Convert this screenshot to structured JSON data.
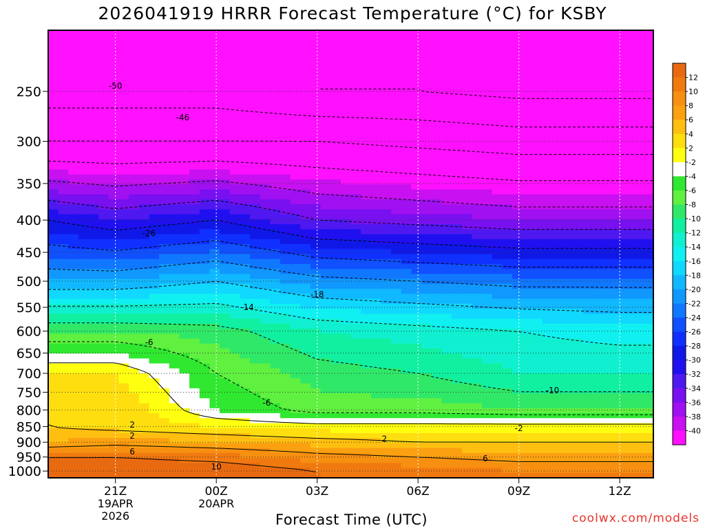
{
  "title": "2026041919 HRRR Forecast Temperature (°C) for KSBY",
  "xlabel": "Forecast Time (UTC)",
  "credit": "coolwx.com/models",
  "chart_data": {
    "type": "heatmap",
    "title": "2026041919 HRRR Forecast Temperature (°C) for KSBY",
    "xlabel": "Forecast Time (UTC)",
    "ylabel": "",
    "y_scale": "log-pressure (hPa, inverted)",
    "ylim": [
      1025,
      200
    ],
    "xlim": [
      "2026-04-19T19:00Z",
      "2026-04-20T13:00Z"
    ],
    "x_ticks": [
      {
        "label": "21Z",
        "sub": [
          "19APR",
          "2026"
        ],
        "time": "2026-04-19T21:00Z"
      },
      {
        "label": "00Z",
        "sub": [
          "20APR"
        ],
        "time": "2026-04-20T00:00Z"
      },
      {
        "label": "03Z",
        "sub": [],
        "time": "2026-04-20T03:00Z"
      },
      {
        "label": "06Z",
        "sub": [],
        "time": "2026-04-20T06:00Z"
      },
      {
        "label": "09Z",
        "sub": [],
        "time": "2026-04-20T09:00Z"
      },
      {
        "label": "12Z",
        "sub": [],
        "time": "2026-04-20T12:00Z"
      }
    ],
    "y_ticks": [
      250,
      300,
      350,
      400,
      450,
      500,
      550,
      600,
      650,
      700,
      750,
      800,
      850,
      900,
      950,
      1000
    ],
    "grid": true,
    "colorbar": {
      "position": "right",
      "labels": [
        "12",
        "10",
        "8",
        "6",
        "4",
        "2",
        "-2",
        "-4",
        "-6",
        "-8",
        "-10",
        "-12",
        "-14",
        "-16",
        "-18",
        "-20",
        "-22",
        "-24",
        "-26",
        "-28",
        "-30",
        "-32",
        "-34",
        "-36",
        "-38",
        "-40"
      ],
      "colors": [
        "#e86a10",
        "#f07a10",
        "#f78f10",
        "#fba010",
        "#ffbf10",
        "#ffde10",
        "#ffff10",
        "#ffffff",
        "#30e830",
        "#60f040",
        "#30e868",
        "#10f0a0",
        "#10f0d0",
        "#10f0f0",
        "#10d8ff",
        "#10b8ff",
        "#1098ff",
        "#1078ff",
        "#1050ff",
        "#1030ff",
        "#1018e8",
        "#2010f0",
        "#5018f0",
        "#7810f0",
        "#a010f0",
        "#c810f0",
        "#ff10ff"
      ]
    },
    "profiles": [
      {
        "time": "2026-04-19T19:00Z",
        "pressure": [
          1000,
          950,
          900,
          850,
          800,
          700,
          600,
          500,
          400,
          300,
          250
        ],
        "temp": [
          14,
          12,
          6,
          4,
          4,
          2,
          -6,
          -18,
          -28,
          -44,
          -50
        ]
      },
      {
        "time": "2026-04-19T21:00Z",
        "pressure": [
          1000,
          950,
          900,
          850,
          800,
          700,
          600,
          500,
          400,
          300,
          250
        ],
        "temp": [
          14,
          12,
          7,
          3,
          4,
          2,
          -6,
          -18,
          -30,
          -44,
          -50
        ]
      },
      {
        "time": "2026-04-20T00:00Z",
        "pressure": [
          1000,
          950,
          900,
          850,
          800,
          700,
          600,
          500,
          400,
          300,
          250
        ],
        "temp": [
          14,
          11,
          6,
          2,
          -2,
          -4,
          -7,
          -16,
          -28,
          -44,
          -50
        ]
      },
      {
        "time": "2026-04-20T03:00Z",
        "pressure": [
          1000,
          950,
          900,
          850,
          800,
          700,
          600,
          500,
          400,
          300,
          250
        ],
        "temp": [
          12,
          9,
          5,
          1,
          -5,
          -7,
          -10,
          -19,
          -32,
          -44,
          -52
        ]
      },
      {
        "time": "2026-04-20T06:00Z",
        "pressure": [
          1000,
          950,
          900,
          850,
          800,
          700,
          600,
          500,
          400,
          300,
          250
        ],
        "temp": [
          11,
          8,
          4,
          1,
          -5,
          -8,
          -11,
          -20,
          -33,
          -45,
          -52
        ]
      },
      {
        "time": "2026-04-20T09:00Z",
        "pressure": [
          1000,
          950,
          900,
          850,
          800,
          700,
          600,
          500,
          400,
          300,
          250
        ],
        "temp": [
          10,
          7,
          4,
          1,
          -6,
          -10,
          -12,
          -21,
          -34,
          -46,
          -53
        ]
      },
      {
        "time": "2026-04-20T12:00Z",
        "pressure": [
          1000,
          950,
          900,
          850,
          800,
          700,
          600,
          500,
          400,
          300,
          250
        ],
        "temp": [
          10,
          7,
          4,
          1,
          -6,
          -10,
          -13,
          -21,
          -34,
          -46,
          -53
        ]
      }
    ],
    "contour_labels": [
      {
        "text": "-50",
        "time": "2026-04-19T21:00Z",
        "pressure": 245
      },
      {
        "text": "-46",
        "time": "2026-04-19T23:00Z",
        "pressure": 275
      },
      {
        "text": "-26",
        "time": "2026-04-19T22:00Z",
        "pressure": 420
      },
      {
        "text": "-18",
        "time": "2026-04-20T03:00Z",
        "pressure": 525
      },
      {
        "text": "-14",
        "time": "2026-04-20T00:55Z",
        "pressure": 550
      },
      {
        "text": "-6",
        "time": "2026-04-19T22:00Z",
        "pressure": 625
      },
      {
        "text": "-10",
        "time": "2026-04-20T10:00Z",
        "pressure": 745
      },
      {
        "text": "-6",
        "time": "2026-04-20T01:30Z",
        "pressure": 780
      },
      {
        "text": "2",
        "time": "2026-04-19T21:30Z",
        "pressure": 845
      },
      {
        "text": "-2",
        "time": "2026-04-20T09:00Z",
        "pressure": 855
      },
      {
        "text": "2",
        "time": "2026-04-19T21:30Z",
        "pressure": 880
      },
      {
        "text": "2",
        "time": "2026-04-20T05:00Z",
        "pressure": 890
      },
      {
        "text": "6",
        "time": "2026-04-19T21:30Z",
        "pressure": 932
      },
      {
        "text": "6",
        "time": "2026-04-20T08:00Z",
        "pressure": 955
      },
      {
        "text": "10",
        "time": "2026-04-20T00:00Z",
        "pressure": 985
      }
    ]
  }
}
